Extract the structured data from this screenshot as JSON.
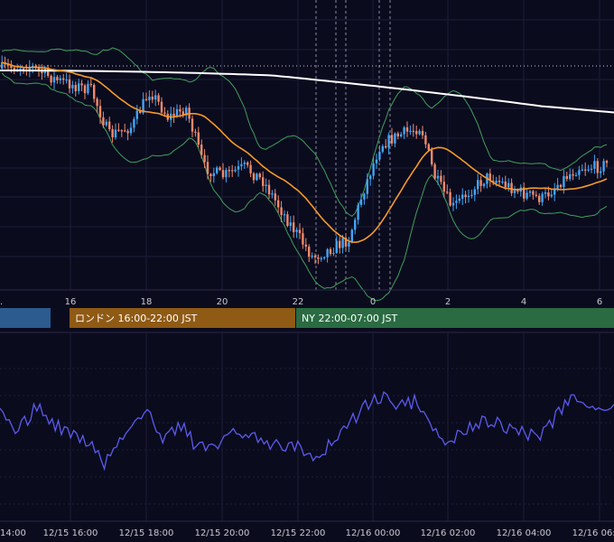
{
  "chart_data": [
    {
      "type": "candlestick",
      "panel": "price",
      "upColor": "#42a5f5",
      "downColor": "#f08a6a",
      "overlays": [
        {
          "kind": "moving-average",
          "color": "#ffffff"
        },
        {
          "kind": "moving-average",
          "color": "#f59a28"
        },
        {
          "kind": "bollinger-bands",
          "color": "#3fa05a"
        }
      ],
      "reference_line": {
        "style": "dotted",
        "color": "#c8c8d2"
      },
      "x_ticks": [
        "16",
        "18",
        "20",
        "22",
        "0",
        "2",
        "4",
        "6"
      ],
      "grid": true
    },
    {
      "type": "line",
      "panel": "oscillator",
      "color": "#5b5bef",
      "grid": true,
      "x_ticks": [
        "12/15 16:00",
        "12/15 18:00",
        "12/15 20:00",
        "12/15 22:00",
        "12/16 00:00",
        "12/16 02:00",
        "12/16 04:00",
        "12/16 06:00"
      ],
      "partial_left_tick": "14:00"
    }
  ],
  "sessions": [
    {
      "label": "",
      "color": "#2b5b8f"
    },
    {
      "label": "ロンドン 16:00-22:00 JST",
      "color": "#8f5a14"
    },
    {
      "label": "NY 22:00-07:00 JST",
      "color": "#2a6b42"
    }
  ]
}
